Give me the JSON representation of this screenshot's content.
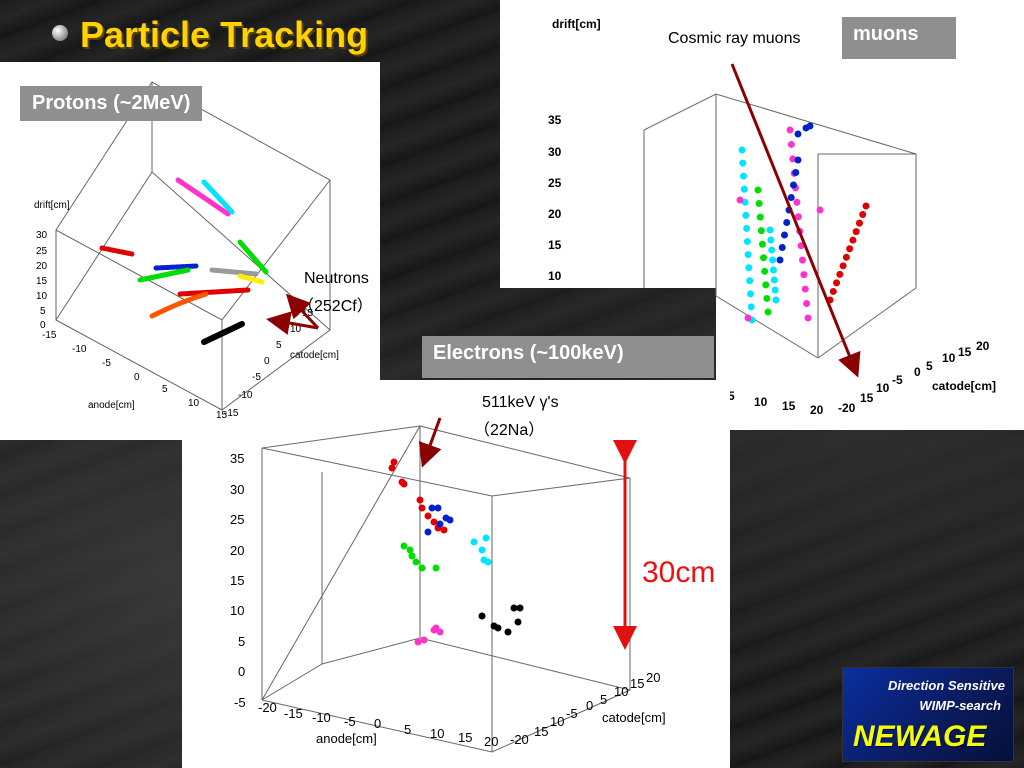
{
  "title": "Particle Tracking",
  "labels": {
    "protons": "Protons (~2MeV)",
    "muons": "muons",
    "electrons": "Electrons (~100keV)"
  },
  "annotations": {
    "cosmic": "Cosmic ray muons",
    "neutrons_1": "Neutrons",
    "neutrons_2": "（252Cf）",
    "gamma_1": "511keV  γ's",
    "gamma_2": "（22Na）",
    "size": "30cm"
  },
  "logo": {
    "line1": "Direction Sensitive",
    "line2": "WIMP-search",
    "line3": "NEWAGE"
  },
  "colors": {
    "title": "#ffd200",
    "label_bg": "#8f8f8f",
    "arrow": "#8b0000",
    "size_arrow": "#e11111"
  },
  "plots": {
    "protons": {
      "z_label": "drift[cm]",
      "x_label": "anode[cm]",
      "y_label": "catode[cm]",
      "z_ticks": [
        "30",
        "25",
        "20",
        "15",
        "10",
        "5",
        "0"
      ],
      "x_ticks": [
        "-15",
        "-10",
        "-5",
        "0",
        "5",
        "10",
        "15"
      ],
      "y_ticks": [
        "-15",
        "-10",
        "-5",
        "0",
        "5",
        "10",
        "15"
      ]
    },
    "muons": {
      "z_label": "drift[cm]",
      "y_label": "catode[cm]",
      "z_ticks": [
        "35",
        "30",
        "25",
        "20",
        "15",
        "10"
      ],
      "x_ticks": [
        "5",
        "10",
        "15",
        "20"
      ],
      "y_ticks": [
        "-20",
        "15",
        "10",
        "-5",
        "0",
        "5",
        "10",
        "15",
        "20"
      ]
    },
    "electrons": {
      "x_label": "anode[cm]",
      "y_label": "catode[cm]",
      "z_ticks": [
        "35",
        "30",
        "25",
        "20",
        "15",
        "10",
        "5",
        "0",
        "-5"
      ],
      "x_ticks": [
        "-20",
        "-15",
        "-10",
        "-5",
        "0",
        "5",
        "10",
        "15",
        "20"
      ],
      "y_ticks": [
        "-20",
        "15",
        "10",
        "-5",
        "0",
        "5",
        "10",
        "15",
        "20"
      ]
    }
  }
}
